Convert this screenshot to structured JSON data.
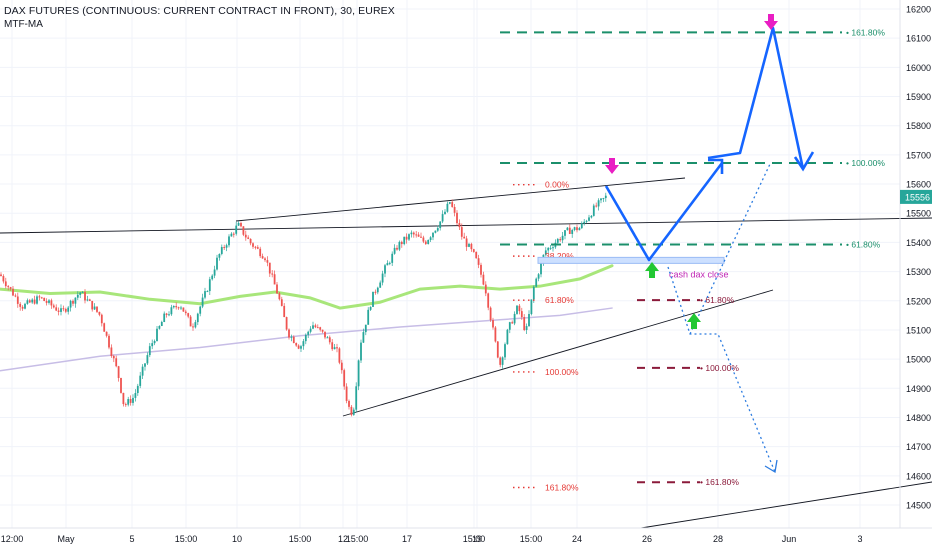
{
  "header": {
    "title": "DAX FUTURES (CONTINUOUS: CURRENT CONTRACT IN FRONT), 30, EUREX",
    "indicator": "MTF-MA"
  },
  "colors": {
    "up": "#26a69a",
    "down": "#ef5350",
    "fib_green": "#1b8f6b",
    "fib_red_text": "#e53935",
    "fib_dark_red": "#8b1a3a",
    "projection_blue": "#1565ff",
    "ma_green": "#a8e67a",
    "ma_purple": "#c7bde6",
    "arrow_pink": "#e91ec3",
    "arrow_green": "#22c733",
    "price_badge": "#26a69a"
  },
  "chart_data": {
    "type": "candlestick",
    "y_axis_ticks": [
      16200,
      16100,
      16000,
      15900,
      15800,
      15700,
      15600,
      15500,
      15400,
      15300,
      15200,
      15100,
      15000,
      14900,
      14800,
      14700,
      14600,
      14500
    ],
    "ylim": [
      14460,
      16225
    ],
    "x_axis_labels": [
      "12:00",
      "May",
      "5",
      "15:00",
      "10",
      "15:00",
      "12",
      "15:00",
      "17",
      "15:00",
      "19",
      "15:00",
      "24",
      "26",
      "28",
      "Jun",
      "3"
    ],
    "last_price": "15556",
    "price_path": [
      [
        0,
        15290
      ],
      [
        22,
        15180
      ],
      [
        40,
        15210
      ],
      [
        62,
        15160
      ],
      [
        80,
        15230
      ],
      [
        100,
        15150
      ],
      [
        118,
        14950
      ],
      [
        124,
        14840
      ],
      [
        134,
        14870
      ],
      [
        150,
        15040
      ],
      [
        165,
        15150
      ],
      [
        180,
        15190
      ],
      [
        192,
        15110
      ],
      [
        206,
        15230
      ],
      [
        218,
        15350
      ],
      [
        230,
        15420
      ],
      [
        238,
        15460
      ],
      [
        250,
        15400
      ],
      [
        265,
        15350
      ],
      [
        278,
        15220
      ],
      [
        288,
        15090
      ],
      [
        300,
        15040
      ],
      [
        312,
        15120
      ],
      [
        325,
        15080
      ],
      [
        338,
        15020
      ],
      [
        348,
        14840
      ],
      [
        353,
        14810
      ],
      [
        360,
        15050
      ],
      [
        372,
        15210
      ],
      [
        385,
        15310
      ],
      [
        398,
        15390
      ],
      [
        412,
        15430
      ],
      [
        425,
        15400
      ],
      [
        440,
        15470
      ],
      [
        450,
        15540
      ],
      [
        462,
        15420
      ],
      [
        475,
        15350
      ],
      [
        485,
        15250
      ],
      [
        495,
        15060
      ],
      [
        500,
        14980
      ],
      [
        508,
        15100
      ],
      [
        518,
        15180
      ],
      [
        526,
        15090
      ],
      [
        534,
        15250
      ],
      [
        545,
        15370
      ],
      [
        555,
        15400
      ],
      [
        568,
        15440
      ],
      [
        580,
        15450
      ],
      [
        595,
        15520
      ],
      [
        606,
        15556
      ]
    ],
    "moving_averages": [
      {
        "color": "green",
        "points": [
          [
            0,
            15240
          ],
          [
            50,
            15225
          ],
          [
            100,
            15230
          ],
          [
            150,
            15205
          ],
          [
            200,
            15190
          ],
          [
            240,
            15215
          ],
          [
            275,
            15230
          ],
          [
            310,
            15210
          ],
          [
            340,
            15175
          ],
          [
            380,
            15195
          ],
          [
            420,
            15240
          ],
          [
            460,
            15250
          ],
          [
            500,
            15240
          ],
          [
            540,
            15250
          ],
          [
            580,
            15275
          ],
          [
            612,
            15320
          ]
        ]
      },
      {
        "color": "purple",
        "points": [
          [
            0,
            14960
          ],
          [
            100,
            15010
          ],
          [
            200,
            15040
          ],
          [
            300,
            15080
          ],
          [
            400,
            15110
          ],
          [
            500,
            15135
          ],
          [
            560,
            15150
          ],
          [
            612,
            15175
          ]
        ]
      }
    ],
    "fib_upper": [
      {
        "label": "161.80%",
        "price": 16120
      },
      {
        "label": "100.00%",
        "price": 15672
      },
      {
        "label": "61.80%",
        "price": 15393
      }
    ],
    "fib_middle": [
      {
        "label": "0.00%",
        "price": 15598
      },
      {
        "label": "38.20%",
        "price": 15353
      },
      {
        "label": "61.80%",
        "price": 15202
      },
      {
        "label": "100.00%",
        "price": 14956
      },
      {
        "label": "161.80%",
        "price": 14560
      }
    ],
    "fib_lower": [
      {
        "label": "61.80%",
        "price": 15202
      },
      {
        "label": "100.00%",
        "price": 14970
      },
      {
        "label": "161.80%",
        "price": 14578
      }
    ],
    "annotations": {
      "cash_close_label": "cash dax close"
    }
  }
}
